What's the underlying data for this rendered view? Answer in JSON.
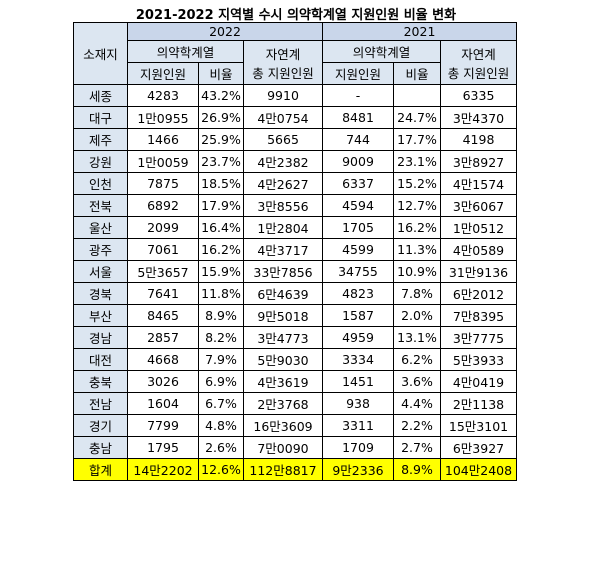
{
  "header": {
    "title": "2021-2022 지역별 수시 의약학계열 지원인원 비율 변화"
  },
  "table": {
    "region_header": "소재지",
    "groups": [
      {
        "year": "2022",
        "field": "의약학계열",
        "applicants": "지원인원",
        "ratio": "비율",
        "nature_line1": "자연계",
        "nature_line2": "총 지원인원"
      },
      {
        "year": "2021",
        "field": "의약학계열",
        "applicants": "지원인원",
        "ratio": "비율",
        "nature_line1": "자연계",
        "nature_line2": "총 지원인원"
      }
    ],
    "rows": [
      [
        "세종",
        "4283",
        "43.2%",
        "9910",
        "-",
        null,
        "6335"
      ],
      [
        "대구",
        "1만0955",
        "26.9%",
        "4만0754",
        "8481",
        "24.7%",
        "3만4370"
      ],
      [
        "제주",
        "1466",
        "25.9%",
        "5665",
        "744",
        "17.7%",
        "4198"
      ],
      [
        "강원",
        "1만0059",
        "23.7%",
        "4만2382",
        "9009",
        "23.1%",
        "3만8927"
      ],
      [
        "인천",
        "7875",
        "18.5%",
        "4만2627",
        "6337",
        "15.2%",
        "4만1574"
      ],
      [
        "전북",
        "6892",
        "17.9%",
        "3만8556",
        "4594",
        "12.7%",
        "3만6067"
      ],
      [
        "울산",
        "2099",
        "16.4%",
        "1만2804",
        "1705",
        "16.2%",
        "1만0512"
      ],
      [
        "광주",
        "7061",
        "16.2%",
        "4만3717",
        "4599",
        "11.3%",
        "4만0589"
      ],
      [
        "서울",
        "5만3657",
        "15.9%",
        "33만7856",
        "34755",
        "10.9%",
        "31만9136"
      ],
      [
        "경북",
        "7641",
        "11.8%",
        "6만4639",
        "4823",
        "7.8%",
        "6만2012"
      ],
      [
        "부산",
        "8465",
        "8.9%",
        "9만5018",
        "1587",
        "2.0%",
        "7만8395"
      ],
      [
        "경남",
        "2857",
        "8.2%",
        "3만4773",
        "4959",
        "13.1%",
        "3만7775"
      ],
      [
        "대전",
        "4668",
        "7.9%",
        "5만9030",
        "3334",
        "6.2%",
        "5만3933"
      ],
      [
        "충북",
        "3026",
        "6.9%",
        "4만3619",
        "1451",
        "3.6%",
        "4만0419"
      ],
      [
        "전남",
        "1604",
        "6.7%",
        "2만3768",
        "938",
        "4.4%",
        "2만1138"
      ],
      [
        "경기",
        "7799",
        "4.8%",
        "16만3609",
        "3311",
        "2.2%",
        "15만3101"
      ],
      [
        "충남",
        "1795",
        "2.6%",
        "7만0090",
        "1709",
        "2.7%",
        "6만3927"
      ]
    ],
    "total": [
      "합계",
      "14만2202",
      "12.6%",
      "112만8817",
      "9만2336",
      "8.9%",
      "104만2408"
    ]
  }
}
